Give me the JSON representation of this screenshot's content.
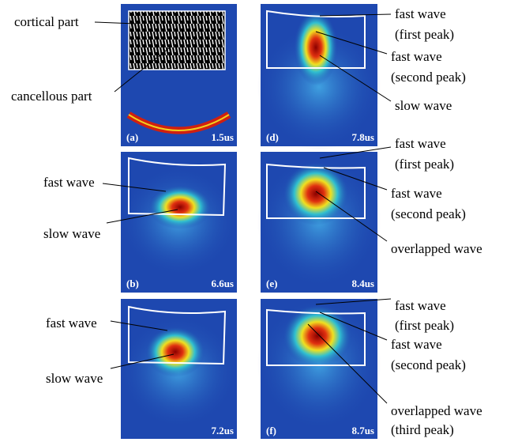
{
  "panels": [
    {
      "label": "(a)",
      "time": "1.5us",
      "annotations": [
        [
          "cortical part"
        ],
        [
          "cancellous part"
        ]
      ]
    },
    {
      "label": "(b)",
      "time": "6.6us",
      "annotations": [
        [
          "fast wave"
        ],
        [
          "slow wave"
        ]
      ]
    },
    {
      "time": "7.2us",
      "annotations": [
        [
          "fast wave"
        ],
        [
          "slow wave"
        ]
      ]
    },
    {
      "label": "(d)",
      "time": "7.8us",
      "annotations": [
        [
          "fast wave",
          "(first peak)"
        ],
        [
          "fast wave",
          "(second peak)"
        ],
        [
          "slow wave"
        ]
      ]
    },
    {
      "label": "(e)",
      "time": "8.4us",
      "annotations": [
        [
          "fast wave",
          "(first peak)"
        ],
        [
          "fast wave",
          "(second peak)"
        ],
        [
          "overlapped wave"
        ]
      ]
    },
    {
      "label": "(f)",
      "time": "8.7us",
      "annotations": [
        [
          "fast wave",
          "(first peak)"
        ],
        [
          "fast wave",
          "(second peak)"
        ],
        [
          "overlapped wave",
          "(third peak)"
        ]
      ]
    }
  ]
}
